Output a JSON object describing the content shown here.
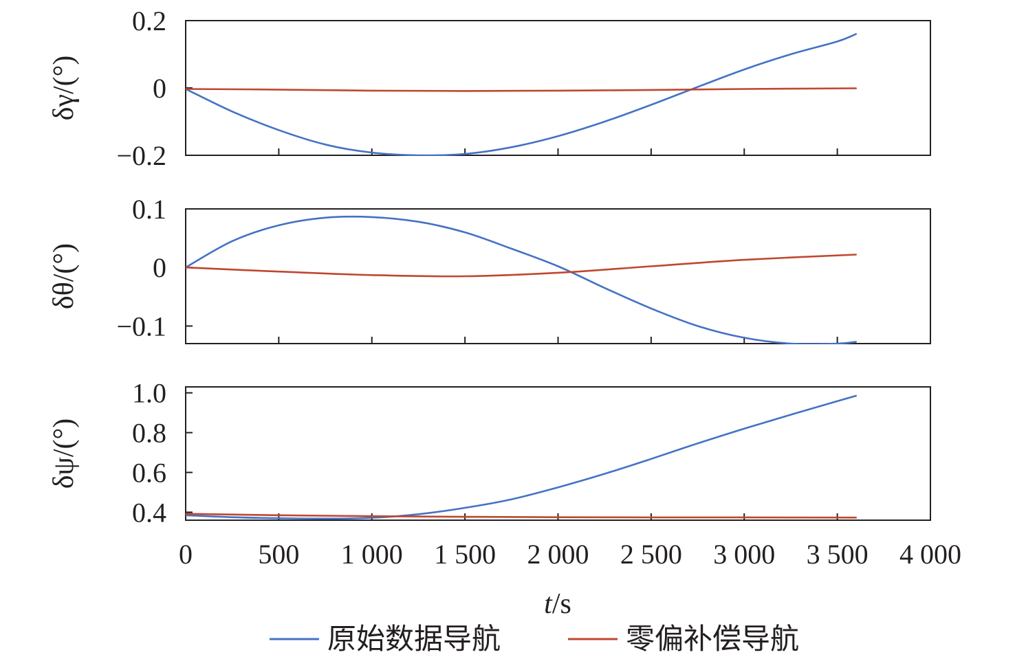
{
  "chart_data": {
    "type": "line",
    "x_label": "t/s",
    "x_ticks": [
      0,
      500,
      1000,
      1500,
      2000,
      2500,
      3000,
      3500,
      4000
    ],
    "x_tick_labels": [
      "0",
      "500",
      "1 000",
      "1 500",
      "2 000",
      "2 500",
      "3 000",
      "3 500",
      "4 000"
    ],
    "xlim": [
      0,
      4000
    ],
    "legend": {
      "position": "bottom",
      "entries": [
        {
          "name": "原始数据导航",
          "color": "#4472c4"
        },
        {
          "name": "零偏补偿导航",
          "color": "#c0462f"
        }
      ]
    },
    "panels": [
      {
        "id": "roll",
        "ylabel": "δγ/(°)",
        "ylim": [
          -0.2,
          0.2
        ],
        "y_ticks": [
          -0.2,
          0,
          0.2
        ],
        "y_tick_labels": [
          "−0.2",
          "0",
          "0.2"
        ],
        "series": [
          {
            "name": "原始数据导航",
            "color": "#4472c4",
            "x": [
              0,
              250,
              500,
              750,
              1000,
              1250,
              1500,
              1750,
              2000,
              2250,
              2500,
              2750,
              3000,
              3250,
              3500,
              3600
            ],
            "y": [
              -0.003,
              -0.07,
              -0.125,
              -0.168,
              -0.192,
              -0.2,
              -0.196,
              -0.176,
              -0.143,
              -0.1,
              -0.05,
              0.003,
              0.055,
              0.1,
              0.138,
              0.16
            ]
          },
          {
            "name": "零偏补偿导航",
            "color": "#c0462f",
            "x": [
              0,
              500,
              1000,
              1500,
              2000,
              2500,
              3000,
              3600
            ],
            "y": [
              -0.003,
              -0.005,
              -0.008,
              -0.009,
              -0.008,
              -0.006,
              -0.003,
              -0.001
            ]
          }
        ]
      },
      {
        "id": "pitch",
        "ylabel": "δθ/(°)",
        "ylim": [
          -0.13,
          0.1
        ],
        "y_ticks": [
          -0.1,
          0,
          0.1
        ],
        "y_tick_labels": [
          "−0.1",
          "0",
          "0.1"
        ],
        "series": [
          {
            "name": "原始数据导航",
            "color": "#4472c4",
            "x": [
              0,
              250,
              500,
              750,
              1000,
              1250,
              1500,
              1750,
              2000,
              2250,
              2500,
              2750,
              3000,
              3250,
              3500,
              3600
            ],
            "y": [
              0.0,
              0.045,
              0.072,
              0.085,
              0.086,
              0.078,
              0.06,
              0.032,
              0.002,
              -0.035,
              -0.07,
              -0.1,
              -0.12,
              -0.13,
              -0.13,
              -0.127
            ]
          },
          {
            "name": "零偏补偿导航",
            "color": "#c0462f",
            "x": [
              0,
              500,
              1000,
              1500,
              2000,
              2500,
              3000,
              3600
            ],
            "y": [
              0.0,
              -0.007,
              -0.013,
              -0.015,
              -0.009,
              0.002,
              0.013,
              0.022
            ]
          }
        ]
      },
      {
        "id": "yaw",
        "ylabel": "δψ/(°)",
        "ylim": [
          0.36,
          1.03
        ],
        "y_ticks": [
          0.4,
          0.6,
          0.8,
          1.0
        ],
        "y_tick_labels": [
          "0.4",
          "0.6",
          "0.8",
          "1.0"
        ],
        "series": [
          {
            "name": "原始数据导航",
            "color": "#4472c4",
            "x": [
              0,
              250,
              500,
              750,
              1000,
              1250,
              1500,
              1750,
              2000,
              2250,
              2500,
              2750,
              3000,
              3250,
              3500,
              3600
            ],
            "y": [
              0.385,
              0.375,
              0.37,
              0.368,
              0.372,
              0.39,
              0.422,
              0.465,
              0.525,
              0.593,
              0.668,
              0.746,
              0.82,
              0.89,
              0.958,
              0.985
            ]
          },
          {
            "name": "零偏补偿导航",
            "color": "#c0462f",
            "x": [
              0,
              500,
              1000,
              1500,
              2000,
              2500,
              3000,
              3600
            ],
            "y": [
              0.392,
              0.385,
              0.38,
              0.377,
              0.375,
              0.374,
              0.374,
              0.373
            ]
          }
        ]
      }
    ]
  }
}
